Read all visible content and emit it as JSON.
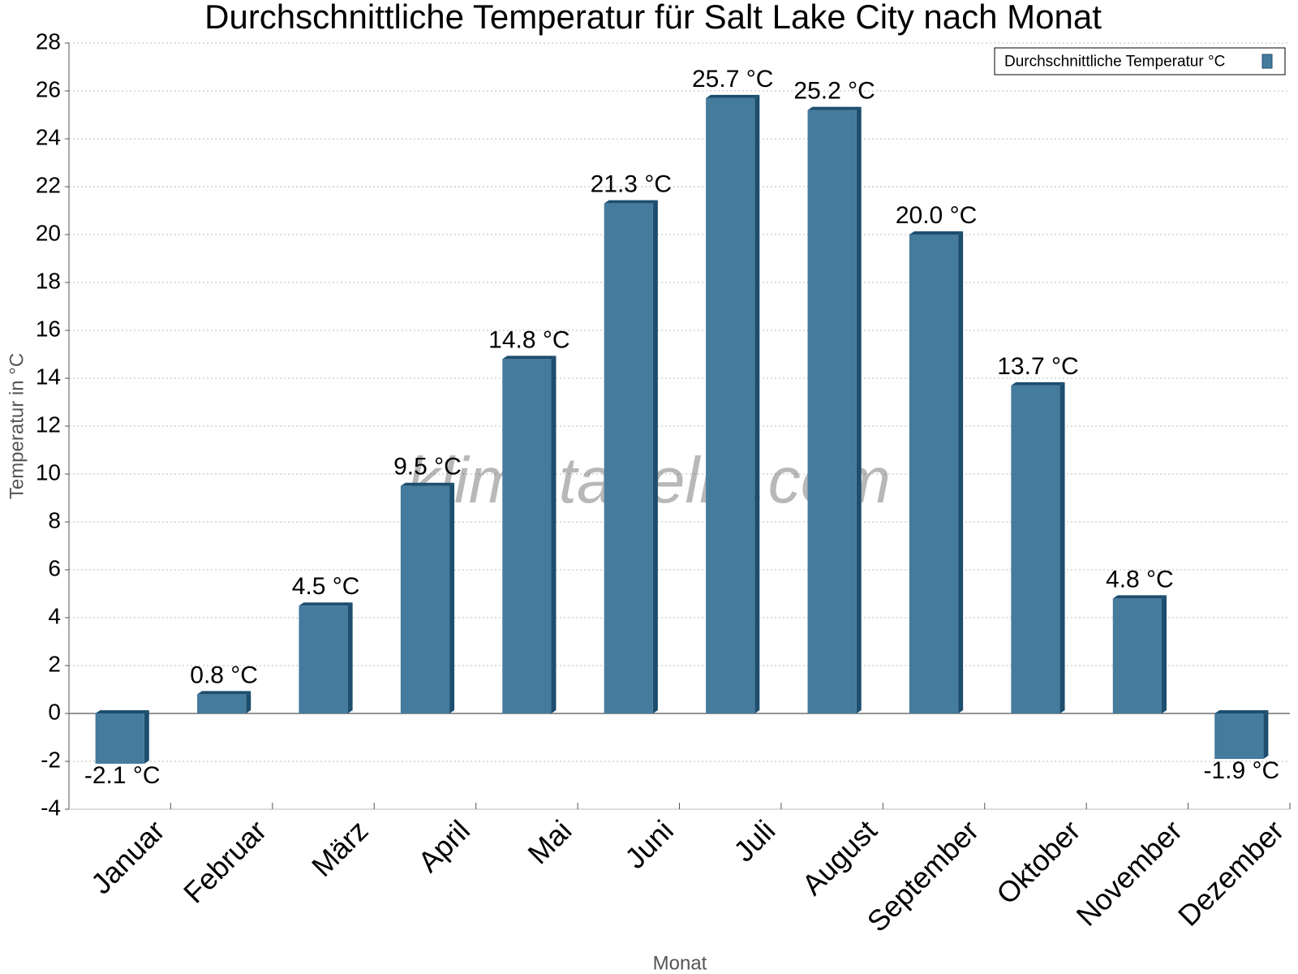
{
  "chart_data": {
    "type": "bar",
    "title": "Durchschnittliche Temperatur für Salt Lake City nach Monat",
    "x_label": "Monat",
    "y_label": "Temperatur in °C",
    "watermark": "klimatabelle.com",
    "categories": [
      "Januar",
      "Februar",
      "März",
      "April",
      "Mai",
      "Juni",
      "Juli",
      "August",
      "September",
      "Oktober",
      "November",
      "Dezember"
    ],
    "series": [
      {
        "name": "Durchschnittliche Temperatur °C",
        "color": "#457b9d",
        "values": [
          -2.1,
          0.8,
          4.5,
          9.5,
          14.8,
          21.3,
          25.7,
          25.2,
          20.0,
          13.7,
          4.8,
          -1.9
        ],
        "value_labels": [
          "-2.1 °C",
          "0.8 °C",
          "4.5 °C",
          "9.5 °C",
          "14.8 °C",
          "21.3 °C",
          "25.7 °C",
          "25.2 °C",
          "20.0 °C",
          "13.7 °C",
          "4.8 °C",
          "-1.9 °C"
        ]
      }
    ],
    "ylim": [
      -4,
      28
    ],
    "yticks": [
      -4,
      -2,
      0,
      2,
      4,
      6,
      8,
      10,
      12,
      14,
      16,
      18,
      20,
      22,
      24,
      26,
      28
    ],
    "grid": true,
    "legend": "upper-right"
  }
}
